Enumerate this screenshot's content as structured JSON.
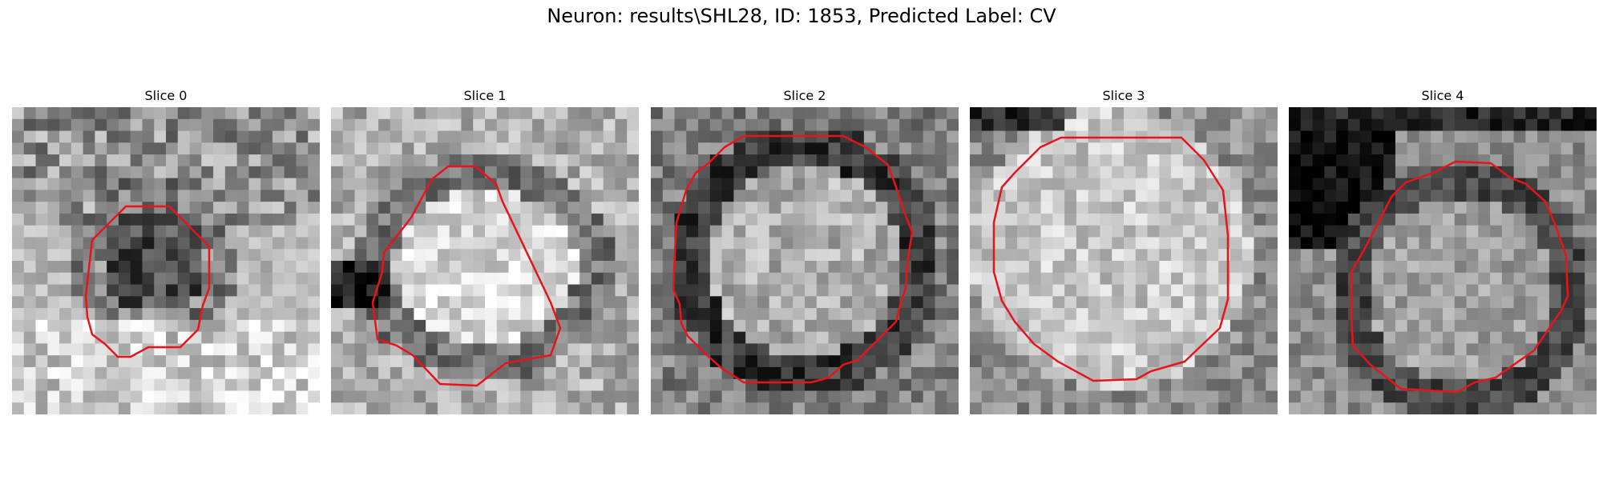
{
  "figure": {
    "title": "Neuron: results\\SHL28, ID: 1853, Predicted Label: CV"
  },
  "colors": {
    "contour": "#e8141b",
    "background": "#ffffff"
  },
  "panels": [
    {
      "title": "Slice 0",
      "style": "blob-dark-center"
    },
    {
      "title": "Slice 1",
      "style": "bright-oval"
    },
    {
      "title": "Slice 2",
      "style": "dark-ring"
    },
    {
      "title": "Slice 3",
      "style": "bright-disk"
    },
    {
      "title": "Slice 4",
      "style": "dark-top-left"
    }
  ]
}
